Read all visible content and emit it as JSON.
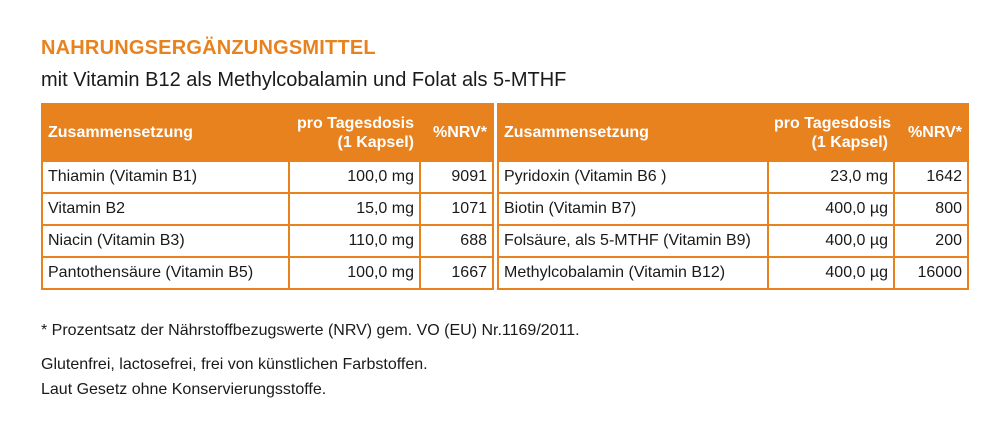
{
  "header": {
    "title": "NAHRUNGSERGÄNZUNGSMITTEL",
    "subtitle": "mit Vitamin B12 als Methylcobalamin und Folat als 5-MTHF"
  },
  "table_left": {
    "columns": [
      "Zusammensetzung",
      "pro Tagesdosis",
      "(1 Kapsel)",
      "%NRV*"
    ],
    "rows": [
      {
        "name": "Thiamin (Vitamin B1)",
        "dose": "100,0 mg",
        "nrv": "9091"
      },
      {
        "name": "Vitamin B2",
        "dose": "15,0 mg",
        "nrv": "1071"
      },
      {
        "name": "Niacin (Vitamin B3)",
        "dose": "110,0 mg",
        "nrv": "688"
      },
      {
        "name": "Pantothensäure (Vitamin B5)",
        "dose": "100,0 mg",
        "nrv": "1667"
      }
    ]
  },
  "table_right": {
    "columns": [
      "Zusammensetzung",
      "pro Tagesdosis",
      "(1 Kapsel)",
      "%NRV*"
    ],
    "rows": [
      {
        "name": "Pyridoxin (Vitamin B6 )",
        "dose": "23,0 mg",
        "nrv": "1642"
      },
      {
        "name": "Biotin (Vitamin B7)",
        "dose": "400,0 µg",
        "nrv": "800"
      },
      {
        "name": "Folsäure, als 5-MTHF (Vitamin B9)",
        "dose": "400,0 µg",
        "nrv": "200"
      },
      {
        "name": "Methylcobalamin (Vitamin B12)",
        "dose": "400,0 µg",
        "nrv": "16000"
      }
    ]
  },
  "notes": {
    "footnote": "* Prozentsatz der Nährstoffbezugswerte (NRV) gem. VO (EU) Nr.1169/2011.",
    "line1": "Glutenfrei, lactosefrei, frei von künstlichen Farbstoffen.",
    "line2": "Laut Gesetz ohne Konservierungsstoffe."
  },
  "colors": {
    "accent": "#e8821e",
    "text": "#1a1a1a",
    "header_text": "#ffffff"
  }
}
